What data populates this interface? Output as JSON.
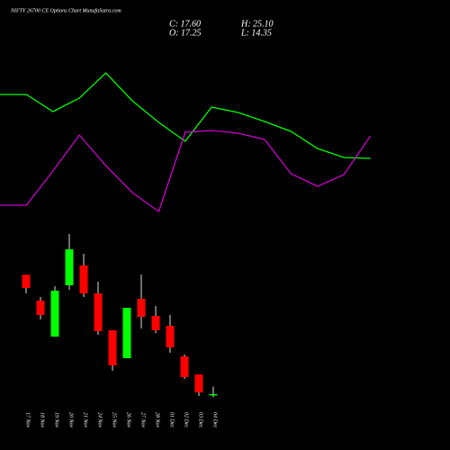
{
  "chart_data": [
    {
      "type": "candlestick",
      "title": "NIFTY 26700  CE Options  Chart MunafaSutra.com",
      "info": {
        "close": "C: 17.60",
        "high": "H: 25.10",
        "open": "O: 17.25",
        "low": "L: 14.35"
      },
      "categories": [
        "17 Nov",
        "18 Nov",
        "19 Nov",
        "20 Nov",
        "21 Nov",
        "24 Nov",
        "25 Nov",
        "26 Nov",
        "27 Nov",
        "28 Nov",
        "01 Dec",
        "02 Dec",
        "03 Dec",
        "04 Dec"
      ],
      "open": [
        136.9,
        111.1,
        75.1,
        126.4,
        146.2,
        118.3,
        81.4,
        53.5,
        112.9,
        95.8,
        85.9,
        55.3,
        37.3,
        17.25
      ],
      "high": [
        137.2,
        114.7,
        125.5,
        177.7,
        157.9,
        130,
        81.4,
        103.9,
        137.2,
        105.7,
        96.7,
        57.1,
        37.3,
        25.1
      ],
      "low": [
        118.3,
        92.2,
        75.1,
        121.9,
        114.7,
        76.9,
        40.9,
        53.5,
        83.2,
        78.7,
        58.9,
        32.8,
        15.7,
        14.35
      ],
      "close": [
        123.7,
        96.7,
        121,
        162.4,
        118.3,
        80.5,
        46.3,
        103.9,
        94.9,
        81.4,
        64.3,
        34.6,
        19.3,
        17.6
      ],
      "ylim": [
        11.2,
        182.2
      ],
      "up_color": "#00ff00",
      "down_color": "#ff0000",
      "wick_color": "#dddddd"
    },
    {
      "type": "line",
      "categories": [
        null,
        null,
        null,
        null,
        null,
        null,
        null,
        null,
        null,
        null,
        null,
        null,
        null,
        null,
        null
      ],
      "series": [
        {
          "color": "#00ff00",
          "values": [
            135,
            135,
            116,
            131,
            159,
            128,
            104,
            83,
            121,
            115,
            105,
            94,
            75,
            65,
            64
          ]
        },
        {
          "color": "#cc00cc",
          "values": [
            12,
            12,
            50,
            90,
            56,
            26,
            5,
            93,
            95,
            92,
            85,
            47,
            33,
            46,
            89
          ]
        }
      ],
      "ylim": [
        0,
        170
      ]
    }
  ]
}
